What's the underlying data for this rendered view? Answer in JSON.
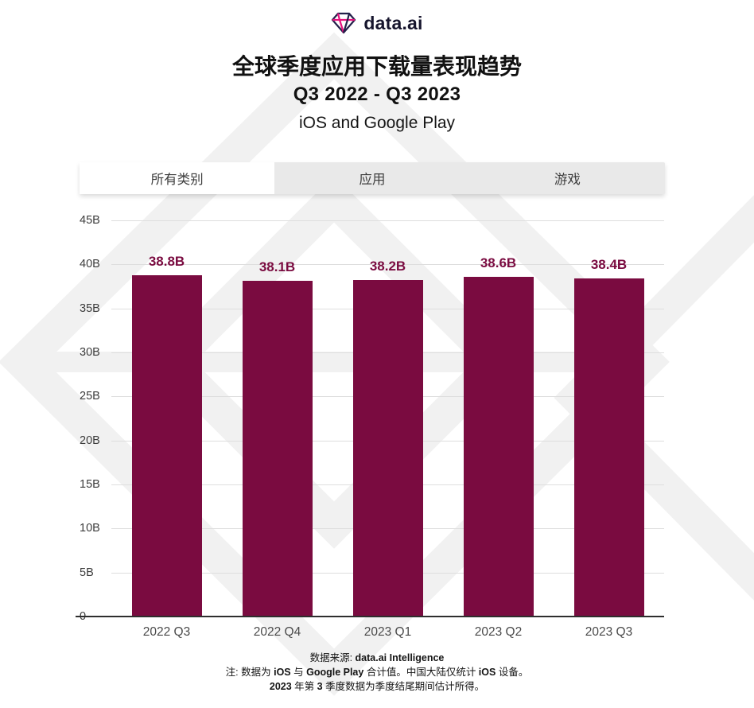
{
  "logo": {
    "text": "data.ai"
  },
  "header": {
    "title_line1": "全球季度应用下载量表现趋势",
    "title_line2": "Q3 2022 - Q3 2023",
    "title_line3": "iOS and Google Play"
  },
  "tabs": [
    {
      "label": "所有类别",
      "active": true
    },
    {
      "label": "应用",
      "active": false
    },
    {
      "label": "游戏",
      "active": false
    }
  ],
  "chart_data": {
    "type": "bar",
    "title": "全球季度应用下载量表现趋势 Q3 2022 - Q3 2023 (iOS and Google Play)",
    "categories": [
      "2022 Q3",
      "2022 Q4",
      "2023 Q1",
      "2023 Q2",
      "2023 Q3"
    ],
    "values": [
      38.8,
      38.1,
      38.2,
      38.6,
      38.4
    ],
    "value_labels": [
      "38.8B",
      "38.1B",
      "38.2B",
      "38.6B",
      "38.4B"
    ],
    "unit": "B (billions of downloads)",
    "xlabel": "",
    "ylabel": "",
    "ylim": [
      0,
      45
    ],
    "ytick_step": 5,
    "ytick_labels": [
      "0",
      "5B",
      "10B",
      "15B",
      "20B",
      "25B",
      "30B",
      "35B",
      "40B",
      "45B"
    ],
    "grid": true,
    "legend": "none",
    "bar_color": "#7a0b40",
    "label_color": "#7a0b40"
  },
  "footer": {
    "source_label": "数据来源: ",
    "source_bold": "data.ai Intelligence",
    "note1_a": "注: 数据为 ",
    "note1_b": "iOS",
    "note1_c": " 与 ",
    "note1_d": "Google Play",
    "note1_e": " 合计值。中国大陆仅统计 ",
    "note1_f": "iOS",
    "note1_g": " 设备。",
    "note2_a": "2023",
    "note2_b": " 年第 ",
    "note2_c": "3",
    "note2_d": " 季度数据为季度结尾期间估计所得。"
  }
}
